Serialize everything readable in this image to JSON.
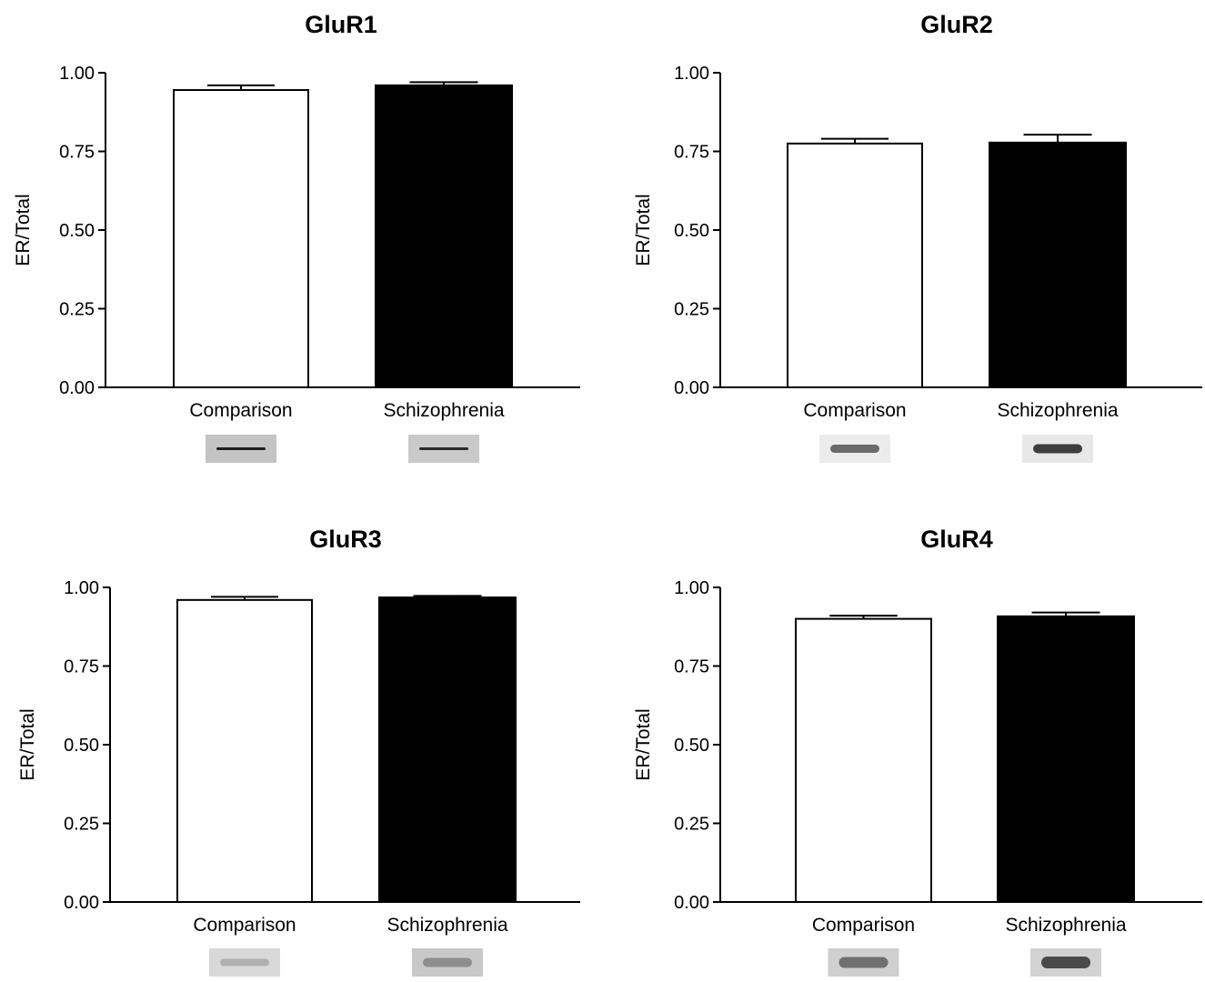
{
  "chart_data": [
    {
      "type": "bar",
      "title": "GluR1",
      "ylabel": "ER/Total",
      "xlabel": "",
      "categories": [
        "Comparison",
        "Schizophrenia"
      ],
      "values": [
        0.945,
        0.96
      ],
      "errors": [
        0.015,
        0.01
      ],
      "bar_colors": [
        "#ffffff",
        "#000000"
      ],
      "ylim": [
        0,
        1.0
      ],
      "yticks": [
        "0.00",
        "0.25",
        "0.50",
        "0.75",
        "1.00"
      ],
      "grid": false,
      "legend": "none"
    },
    {
      "type": "bar",
      "title": "GluR2",
      "ylabel": "ER/Total",
      "xlabel": "",
      "categories": [
        "Comparison",
        "Schizophrenia"
      ],
      "values": [
        0.775,
        0.778
      ],
      "errors": [
        0.015,
        0.025
      ],
      "bar_colors": [
        "#ffffff",
        "#000000"
      ],
      "ylim": [
        0,
        1.0
      ],
      "yticks": [
        "0.00",
        "0.25",
        "0.50",
        "0.75",
        "1.00"
      ],
      "grid": false,
      "legend": "none"
    },
    {
      "type": "bar",
      "title": "GluR3",
      "ylabel": "ER/Total",
      "xlabel": "",
      "categories": [
        "Comparison",
        "Schizophrenia"
      ],
      "values": [
        0.96,
        0.968
      ],
      "errors": [
        0.01,
        0.005
      ],
      "bar_colors": [
        "#ffffff",
        "#000000"
      ],
      "ylim": [
        0,
        1.0
      ],
      "yticks": [
        "0.00",
        "0.25",
        "0.50",
        "0.75",
        "1.00"
      ],
      "grid": false,
      "legend": "none"
    },
    {
      "type": "bar",
      "title": "GluR4",
      "ylabel": "ER/Total",
      "xlabel": "",
      "categories": [
        "Comparison",
        "Schizophrenia"
      ],
      "values": [
        0.9,
        0.908
      ],
      "errors": [
        0.01,
        0.012
      ],
      "bar_colors": [
        "#ffffff",
        "#000000"
      ],
      "ylim": [
        0,
        1.0
      ],
      "yticks": [
        "0.00",
        "0.25",
        "0.50",
        "0.75",
        "1.00"
      ],
      "grid": false,
      "legend": "none"
    }
  ]
}
